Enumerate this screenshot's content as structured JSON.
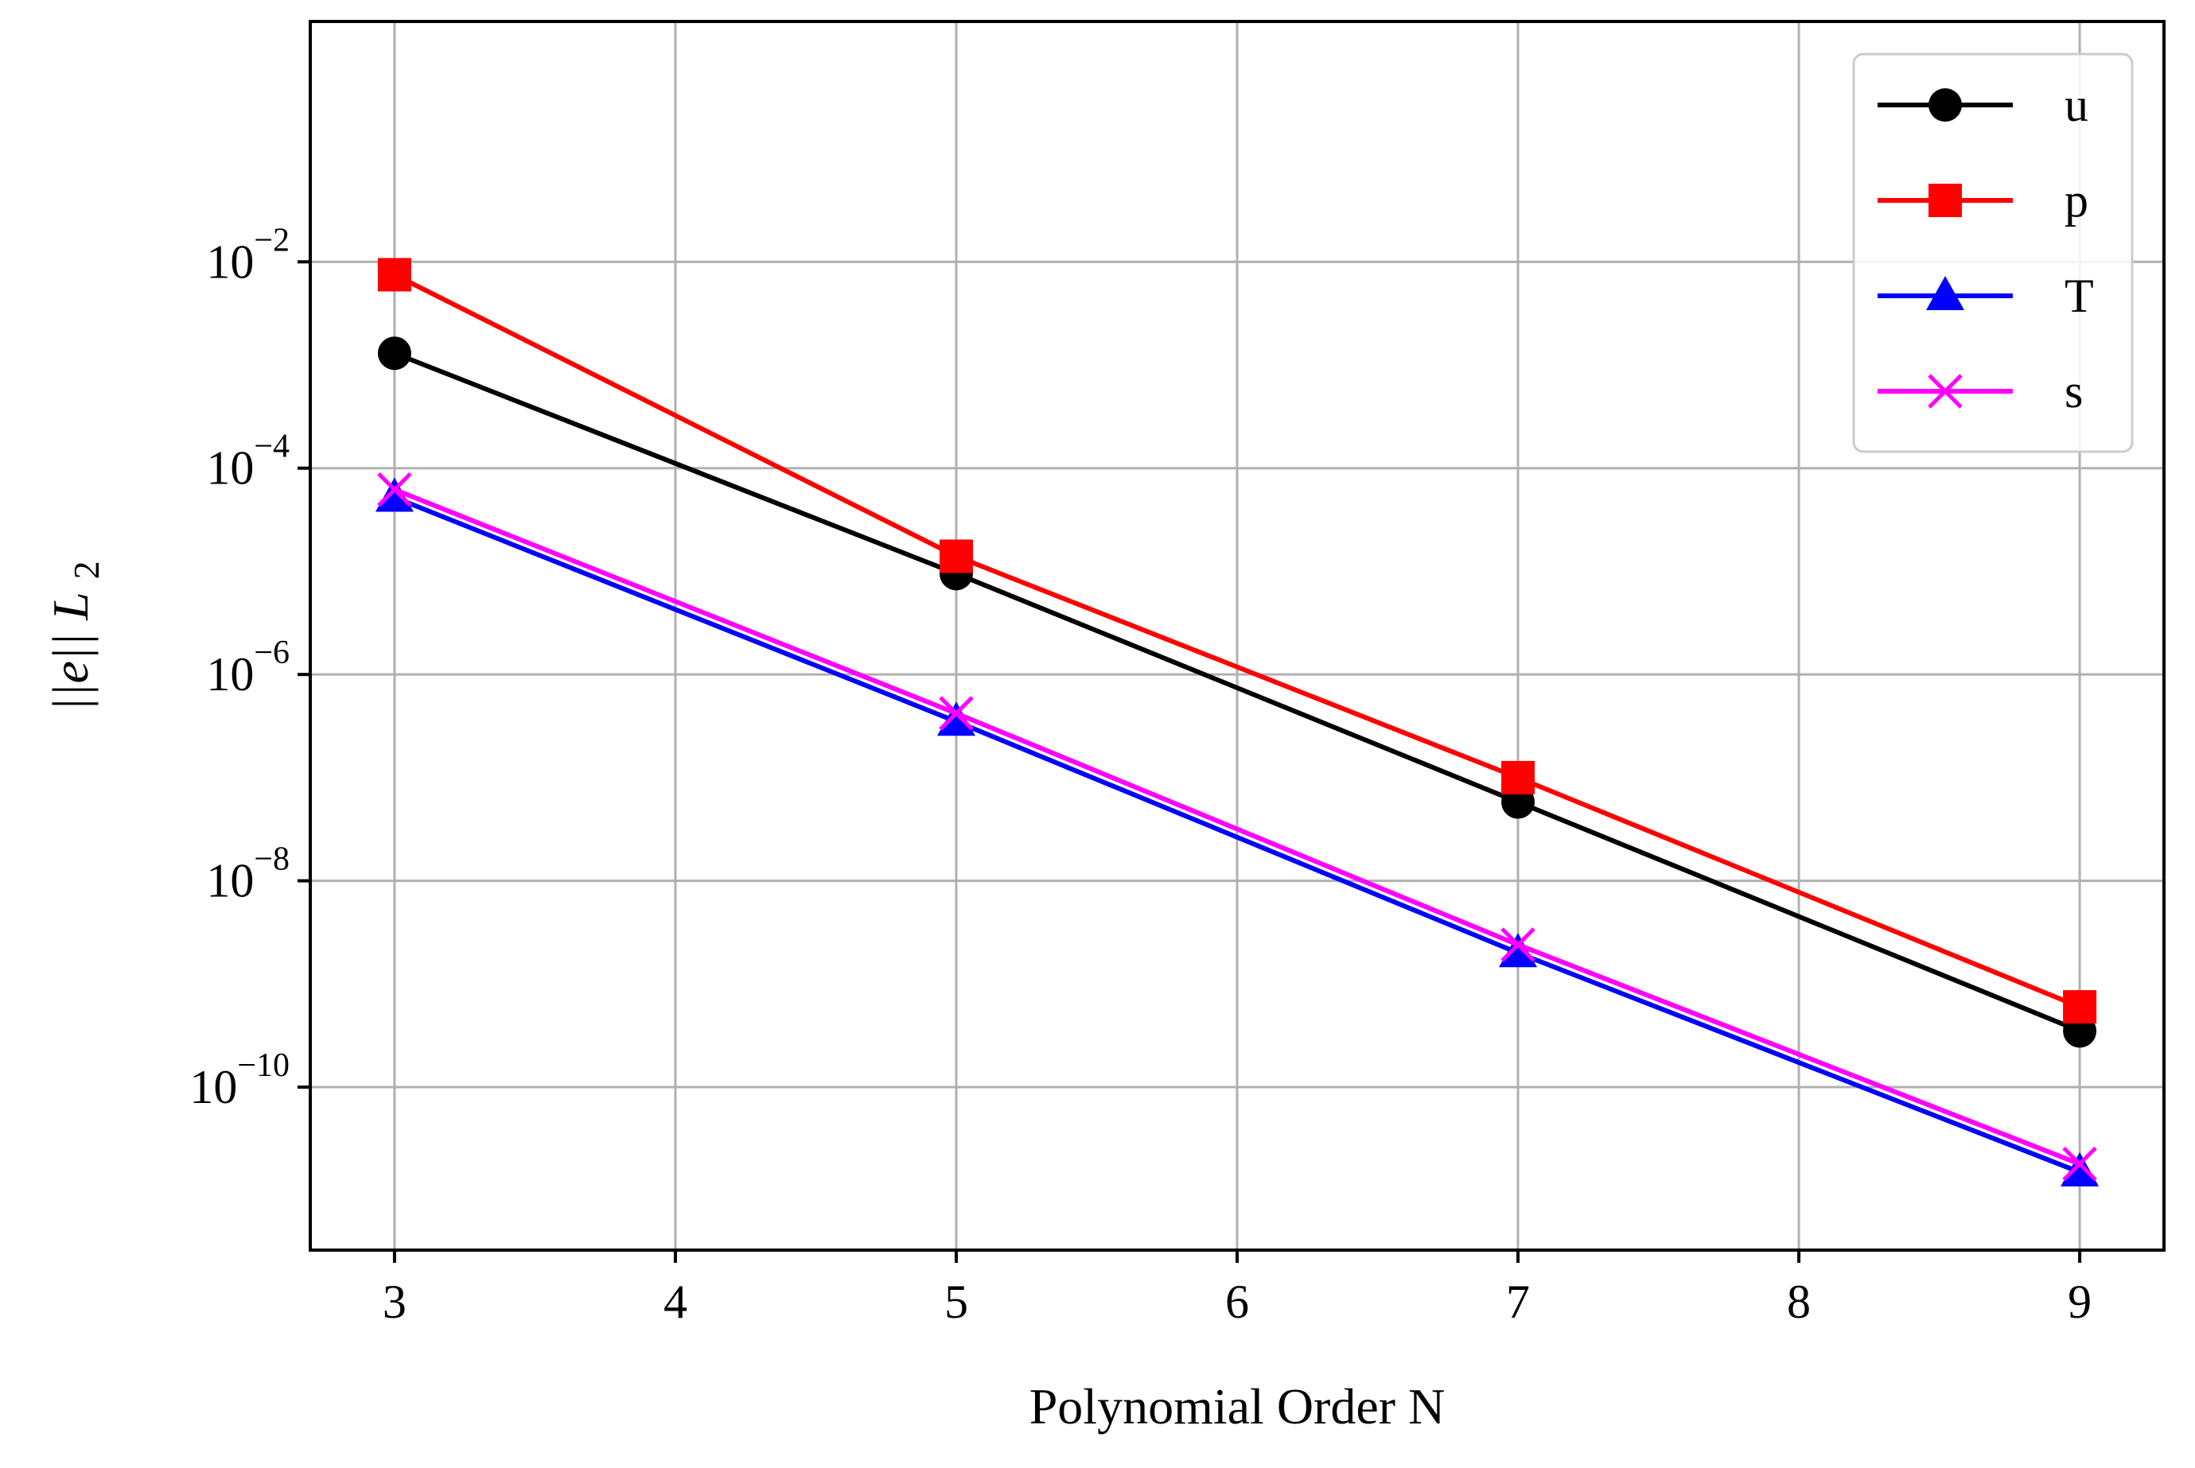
{
  "chart_data": {
    "type": "line",
    "xlabel": "Polynomial Order N",
    "ylabel_base": "||e||",
    "ylabel_sub": "L",
    "ylabel_subsub": "2",
    "yscale": "log",
    "xlim": [
      2.7,
      9.3
    ],
    "ylim_log10": [
      -11.58,
      0.33
    ],
    "x_ticks": [
      3,
      4,
      5,
      6,
      7,
      8,
      9
    ],
    "x_tick_labels": [
      "3",
      "4",
      "5",
      "6",
      "7",
      "8",
      "9"
    ],
    "y_ticks_log10": [
      -2,
      -4,
      -6,
      -8,
      -10
    ],
    "y_tick_base": "10",
    "y_tick_exponents": [
      "−2",
      "−4",
      "−6",
      "−8",
      "−10"
    ],
    "grid": true,
    "legend_position": "top-right",
    "x": [
      3,
      5,
      7,
      9
    ],
    "series": [
      {
        "name": "u",
        "color": "#000000",
        "marker": "circle",
        "values": [
          0.0013,
          9.5e-06,
          5.8e-08,
          3.5e-10
        ]
      },
      {
        "name": "p",
        "color": "#ff0000",
        "marker": "square",
        "values": [
          0.0075,
          1.4e-05,
          1e-07,
          6e-10
        ]
      },
      {
        "name": "T",
        "color": "#0000ff",
        "marker": "triangle",
        "values": [
          5.2e-05,
          3.5e-07,
          2e-09,
          1.5e-11
        ]
      },
      {
        "name": "s",
        "color": "#ff00ff",
        "marker": "x",
        "values": [
          6.2e-05,
          4.2e-07,
          2.4e-09,
          1.8e-11
        ]
      }
    ]
  }
}
